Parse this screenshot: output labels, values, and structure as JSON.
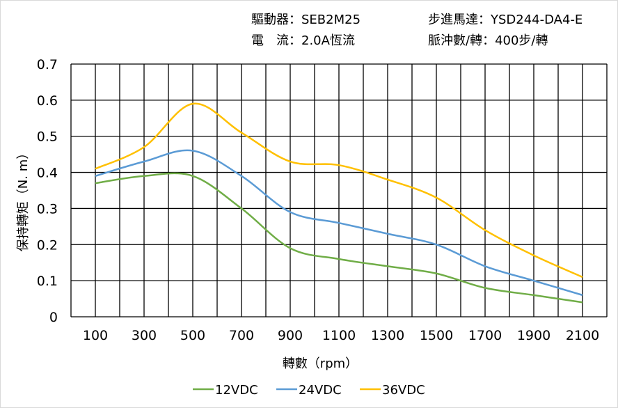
{
  "header": {
    "driver": "驅動器：SEB2M25",
    "current": "電　流：2.0A恆流",
    "motor": "步進馬達：YSD244-DA4-E",
    "pulses": "脈沖數/轉：400步/轉"
  },
  "chart_data": {
    "type": "line",
    "xlabel": "轉數（rpm）",
    "ylabel": "保持轉矩（N. m）",
    "xlim": [
      0,
      2200
    ],
    "ylim": [
      0,
      0.7
    ],
    "grid": true,
    "legend_position": "bottom",
    "x_ticks": [
      100,
      300,
      500,
      700,
      900,
      1100,
      1300,
      1500,
      1700,
      1900,
      2100
    ],
    "y_ticks": [
      "0",
      "0.1",
      "0.2",
      "0.3",
      "0.4",
      "0.5",
      "0.6",
      "0.7"
    ],
    "x": [
      100,
      300,
      500,
      700,
      900,
      1100,
      1300,
      1500,
      1700,
      1900,
      2100
    ],
    "series": [
      {
        "name": "12VDC",
        "color": "#70ad47",
        "values": [
          0.37,
          0.39,
          0.39,
          0.3,
          0.19,
          0.16,
          0.14,
          0.12,
          0.08,
          0.06,
          0.04
        ]
      },
      {
        "name": "24VDC",
        "color": "#5b9bd5",
        "values": [
          0.39,
          0.43,
          0.46,
          0.39,
          0.29,
          0.26,
          0.23,
          0.2,
          0.14,
          0.1,
          0.06
        ]
      },
      {
        "name": "36VDC",
        "color": "#ffc000",
        "values": [
          0.41,
          0.47,
          0.59,
          0.51,
          0.43,
          0.42,
          0.38,
          0.33,
          0.24,
          0.17,
          0.11
        ]
      }
    ]
  }
}
